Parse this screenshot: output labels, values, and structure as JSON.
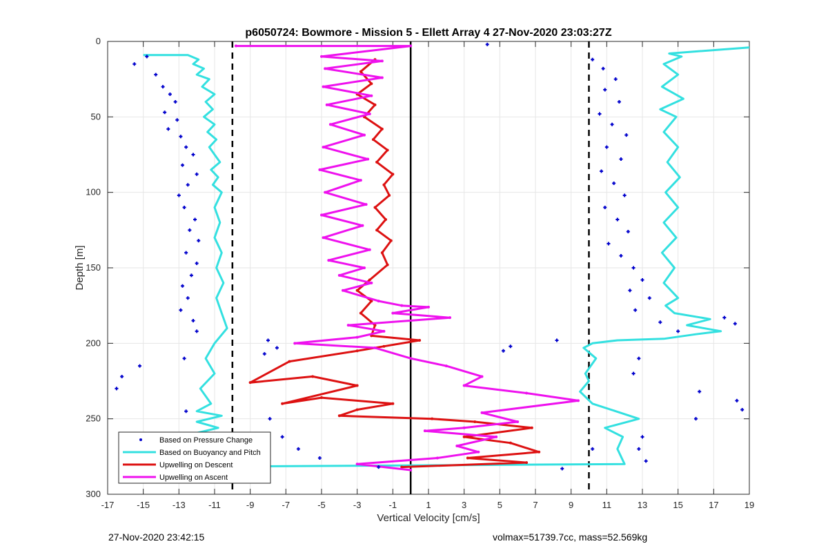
{
  "chart_data": {
    "type": "scatter",
    "title": "p6050724: Bowmore - Mission 5 - Ellett Array 4 27-Nov-2020 23:03:27Z",
    "xlabel": "Vertical Velocity [cm/s]",
    "ylabel": "Depth [m]",
    "xlim": [
      -17,
      19
    ],
    "ylim": [
      0,
      300
    ],
    "y_reversed": true,
    "grid": true,
    "legend_position": "bottom-left",
    "x_ticks": [
      -17,
      -15,
      -13,
      -11,
      -9,
      -7,
      -5,
      -3,
      -1,
      1,
      3,
      5,
      7,
      9,
      11,
      13,
      15,
      17,
      19
    ],
    "y_ticks": [
      0,
      50,
      100,
      150,
      200,
      250,
      300
    ],
    "reference_lines": [
      {
        "x": -10,
        "style": "dashed"
      },
      {
        "x": 10,
        "style": "dashed"
      },
      {
        "x": 0,
        "style": "solid"
      }
    ],
    "series": [
      {
        "name": "Based on Pressure Change",
        "kind": "points",
        "color": "#0000cc",
        "points": [
          [
            -15.5,
            15
          ],
          [
            -14.8,
            10
          ],
          [
            -14.3,
            22
          ],
          [
            -13.9,
            30
          ],
          [
            -13.5,
            35
          ],
          [
            -13.2,
            40
          ],
          [
            -13.8,
            47
          ],
          [
            -13.1,
            52
          ],
          [
            -13.6,
            58
          ],
          [
            -12.9,
            63
          ],
          [
            -12.6,
            70
          ],
          [
            -12.2,
            75
          ],
          [
            -12.8,
            82
          ],
          [
            -12.0,
            88
          ],
          [
            -12.5,
            95
          ],
          [
            -13.0,
            102
          ],
          [
            -12.7,
            110
          ],
          [
            -12.1,
            118
          ],
          [
            -12.4,
            125
          ],
          [
            -11.9,
            132
          ],
          [
            -12.6,
            140
          ],
          [
            -12.0,
            147
          ],
          [
            -12.3,
            155
          ],
          [
            -12.8,
            162
          ],
          [
            -12.5,
            170
          ],
          [
            -12.9,
            178
          ],
          [
            -12.2,
            185
          ],
          [
            -12.0,
            192
          ],
          [
            -8.0,
            198
          ],
          [
            -7.5,
            203
          ],
          [
            -8.2,
            207
          ],
          [
            -16.2,
            222
          ],
          [
            -16.5,
            230
          ],
          [
            -15.2,
            215
          ],
          [
            -12.7,
            210
          ],
          [
            -12.6,
            245
          ],
          [
            -12.0,
            260
          ],
          [
            -11.6,
            268
          ],
          [
            -7.9,
            250
          ],
          [
            -7.2,
            262
          ],
          [
            -6.3,
            270
          ],
          [
            -5.1,
            276
          ],
          [
            -1.8,
            282
          ],
          [
            4.3,
            2
          ],
          [
            5.2,
            205
          ],
          [
            5.6,
            202
          ],
          [
            8.2,
            198
          ],
          [
            10.2,
            12
          ],
          [
            10.8,
            18
          ],
          [
            11.5,
            25
          ],
          [
            10.9,
            32
          ],
          [
            11.7,
            40
          ],
          [
            10.6,
            48
          ],
          [
            11.3,
            55
          ],
          [
            12.1,
            62
          ],
          [
            11.0,
            70
          ],
          [
            11.8,
            78
          ],
          [
            10.7,
            86
          ],
          [
            11.4,
            94
          ],
          [
            12.0,
            102
          ],
          [
            10.9,
            110
          ],
          [
            11.6,
            118
          ],
          [
            12.2,
            126
          ],
          [
            11.1,
            134
          ],
          [
            11.8,
            142
          ],
          [
            12.5,
            150
          ],
          [
            13.0,
            158
          ],
          [
            12.3,
            165
          ],
          [
            13.4,
            170
          ],
          [
            12.6,
            178
          ],
          [
            14.0,
            186
          ],
          [
            17.6,
            183
          ],
          [
            18.2,
            187
          ],
          [
            15.0,
            192
          ],
          [
            12.8,
            210
          ],
          [
            12.5,
            220
          ],
          [
            16.2,
            232
          ],
          [
            18.3,
            238
          ],
          [
            18.6,
            244
          ],
          [
            16.0,
            250
          ],
          [
            13.0,
            262
          ],
          [
            12.8,
            270
          ],
          [
            13.2,
            278
          ],
          [
            10.2,
            270
          ],
          [
            8.5,
            283
          ]
        ]
      },
      {
        "name": "Based on Buoyancy and Pitch",
        "kind": "line",
        "color": "#33e0e0",
        "points": [
          [
            -15.0,
            9
          ],
          [
            -12.5,
            9
          ],
          [
            -11.9,
            12
          ],
          [
            -12.2,
            15
          ],
          [
            -11.6,
            18
          ],
          [
            -12.0,
            22
          ],
          [
            -11.3,
            25
          ],
          [
            -11.7,
            30
          ],
          [
            -11.0,
            35
          ],
          [
            -11.5,
            40
          ],
          [
            -11.1,
            45
          ],
          [
            -11.6,
            50
          ],
          [
            -11.0,
            55
          ],
          [
            -11.4,
            60
          ],
          [
            -10.9,
            65
          ],
          [
            -11.3,
            70
          ],
          [
            -11.0,
            75
          ],
          [
            -10.7,
            80
          ],
          [
            -11.2,
            85
          ],
          [
            -10.8,
            90
          ],
          [
            -11.1,
            95
          ],
          [
            -10.6,
            100
          ],
          [
            -11.0,
            110
          ],
          [
            -10.7,
            120
          ],
          [
            -11.0,
            130
          ],
          [
            -10.6,
            140
          ],
          [
            -10.9,
            150
          ],
          [
            -10.5,
            160
          ],
          [
            -10.9,
            170
          ],
          [
            -10.6,
            180
          ],
          [
            -10.3,
            190
          ],
          [
            -11.0,
            200
          ],
          [
            -11.5,
            210
          ],
          [
            -11.0,
            220
          ],
          [
            -11.8,
            230
          ],
          [
            -11.2,
            240
          ],
          [
            -12.0,
            245
          ],
          [
            -10.6,
            248
          ],
          [
            -12.0,
            252
          ],
          [
            -10.8,
            256
          ],
          [
            -12.2,
            260
          ],
          [
            -10.9,
            265
          ],
          [
            -11.5,
            270
          ],
          [
            -10.6,
            275
          ],
          [
            -11.8,
            279
          ],
          [
            -15.0,
            282
          ],
          [
            12.0,
            280
          ],
          [
            11.6,
            270
          ],
          [
            11.9,
            262
          ],
          [
            10.9,
            256
          ],
          [
            12.8,
            250
          ],
          [
            11.5,
            245
          ],
          [
            10.2,
            240
          ],
          [
            9.5,
            232
          ],
          [
            10.0,
            225
          ],
          [
            9.8,
            220
          ],
          [
            10.4,
            210
          ],
          [
            9.7,
            203
          ],
          [
            10.2,
            200
          ],
          [
            11.6,
            198
          ],
          [
            14.2,
            197
          ],
          [
            16.0,
            194
          ],
          [
            17.4,
            192
          ],
          [
            15.5,
            188
          ],
          [
            16.8,
            184
          ],
          [
            14.8,
            180
          ],
          [
            14.3,
            175
          ],
          [
            15.0,
            170
          ],
          [
            14.2,
            160
          ],
          [
            14.8,
            150
          ],
          [
            14.1,
            140
          ],
          [
            14.9,
            130
          ],
          [
            14.2,
            120
          ],
          [
            15.0,
            110
          ],
          [
            14.3,
            100
          ],
          [
            15.1,
            90
          ],
          [
            14.4,
            80
          ],
          [
            15.0,
            70
          ],
          [
            14.2,
            60
          ],
          [
            14.9,
            50
          ],
          [
            14.0,
            45
          ],
          [
            15.3,
            38
          ],
          [
            14.1,
            30
          ],
          [
            15.0,
            22
          ],
          [
            14.2,
            15
          ],
          [
            15.2,
            10
          ],
          [
            14.5,
            8
          ],
          [
            19.0,
            4
          ]
        ]
      },
      {
        "name": "Upwelling on Descent",
        "kind": "line",
        "color": "#dd1111",
        "points": [
          [
            -2.0,
            12
          ],
          [
            -2.8,
            20
          ],
          [
            -2.2,
            28
          ],
          [
            -3.0,
            35
          ],
          [
            -2.0,
            42
          ],
          [
            -2.6,
            50
          ],
          [
            -1.6,
            58
          ],
          [
            -2.1,
            65
          ],
          [
            -1.3,
            72
          ],
          [
            -1.9,
            80
          ],
          [
            -1.0,
            88
          ],
          [
            -1.5,
            95
          ],
          [
            -1.2,
            102
          ],
          [
            -2.0,
            110
          ],
          [
            -1.4,
            118
          ],
          [
            -1.9,
            125
          ],
          [
            -1.1,
            132
          ],
          [
            -1.6,
            140
          ],
          [
            -1.3,
            148
          ],
          [
            -2.3,
            158
          ],
          [
            -3.0,
            165
          ],
          [
            -2.2,
            172
          ],
          [
            -2.8,
            180
          ],
          [
            -2.0,
            188
          ],
          [
            -2.2,
            195
          ],
          [
            0.5,
            198
          ],
          [
            -1.5,
            202
          ],
          [
            -3.0,
            205
          ],
          [
            -6.8,
            212
          ],
          [
            -9.0,
            226
          ],
          [
            -5.5,
            222
          ],
          [
            -3.0,
            228
          ],
          [
            -7.2,
            240
          ],
          [
            -5.0,
            236
          ],
          [
            -1.0,
            240
          ],
          [
            -3.0,
            244
          ],
          [
            -4.0,
            248
          ],
          [
            1.2,
            250
          ],
          [
            3.6,
            252
          ],
          [
            6.8,
            256
          ],
          [
            3.0,
            262
          ],
          [
            5.6,
            266
          ],
          [
            7.2,
            272
          ],
          [
            3.2,
            276
          ],
          [
            6.5,
            279
          ],
          [
            -0.5,
            282
          ]
        ]
      },
      {
        "name": "Upwelling on Ascent",
        "kind": "line",
        "color": "#ee11ee",
        "points": [
          [
            -9.8,
            3
          ],
          [
            0.0,
            3
          ],
          [
            -5.0,
            10
          ],
          [
            -1.6,
            13
          ],
          [
            -4.8,
            18
          ],
          [
            -1.6,
            24
          ],
          [
            -4.9,
            30
          ],
          [
            -2.2,
            36
          ],
          [
            -4.7,
            42
          ],
          [
            -2.3,
            48
          ],
          [
            -4.5,
            55
          ],
          [
            -2.6,
            62
          ],
          [
            -4.9,
            70
          ],
          [
            -2.4,
            78
          ],
          [
            -5.1,
            85
          ],
          [
            -2.8,
            92
          ],
          [
            -4.8,
            100
          ],
          [
            -2.5,
            108
          ],
          [
            -5.0,
            115
          ],
          [
            -2.7,
            122
          ],
          [
            -4.9,
            130
          ],
          [
            -2.3,
            138
          ],
          [
            -4.6,
            145
          ],
          [
            -2.6,
            150
          ],
          [
            -4.0,
            155
          ],
          [
            -2.2,
            160
          ],
          [
            -3.8,
            165
          ],
          [
            -1.8,
            172
          ],
          [
            -0.5,
            175
          ],
          [
            1.0,
            176
          ],
          [
            -1.0,
            180
          ],
          [
            2.2,
            183
          ],
          [
            -3.5,
            188
          ],
          [
            -1.5,
            192
          ],
          [
            -3.0,
            196
          ],
          [
            -6.5,
            200
          ],
          [
            -2.0,
            203
          ],
          [
            0.0,
            210
          ],
          [
            2.0,
            215
          ],
          [
            4.0,
            222
          ],
          [
            3.0,
            228
          ],
          [
            6.5,
            233
          ],
          [
            9.4,
            238
          ],
          [
            4.0,
            246
          ],
          [
            6.0,
            252
          ],
          [
            3.0,
            256
          ],
          [
            0.8,
            258
          ],
          [
            4.8,
            262
          ],
          [
            2.6,
            268
          ],
          [
            3.8,
            272
          ],
          [
            1.5,
            276
          ],
          [
            -3.0,
            280
          ],
          [
            0.0,
            284
          ]
        ]
      }
    ]
  },
  "footer_left": "27-Nov-2020 23:42:15",
  "footer_right": "volmax=51739.7cc, mass=52.569kg"
}
